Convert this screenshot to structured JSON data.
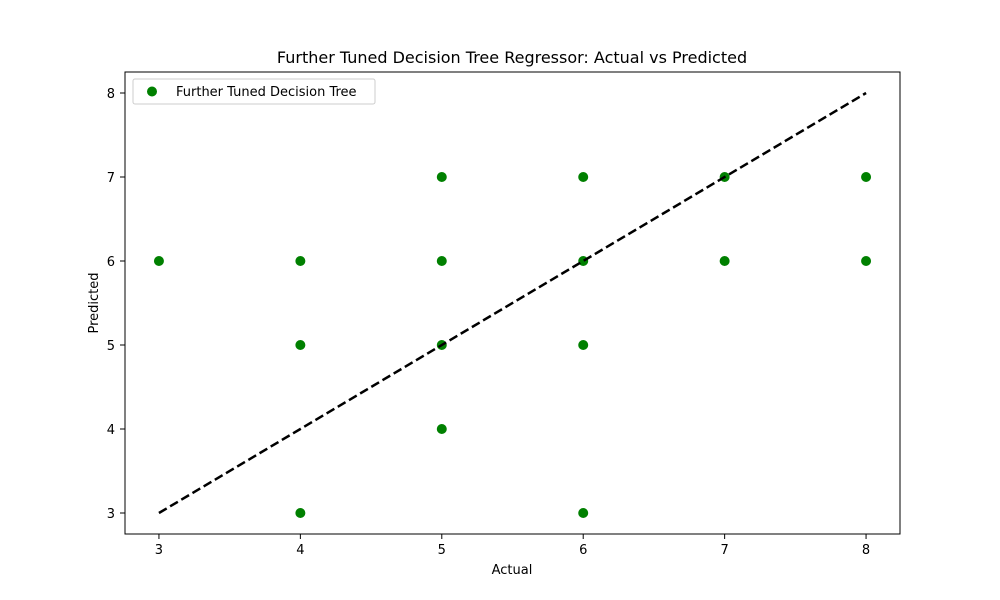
{
  "chart_data": {
    "type": "scatter",
    "title": "Further Tuned Decision Tree Regressor: Actual vs Predicted",
    "xlabel": "Actual",
    "ylabel": "Predicted",
    "xlim": [
      2.76,
      8.24
    ],
    "ylim": [
      2.75,
      8.25
    ],
    "xticks": [
      "3",
      "4",
      "5",
      "6",
      "7",
      "8"
    ],
    "yticks": [
      "3",
      "4",
      "5",
      "6",
      "7",
      "8"
    ],
    "grid": false,
    "legend_position": "upper-left",
    "series": [
      {
        "name": "Further Tuned Decision Tree",
        "color": "#008000",
        "marker": "circle",
        "points": [
          [
            3,
            6
          ],
          [
            4,
            6
          ],
          [
            4,
            5
          ],
          [
            4,
            3
          ],
          [
            5,
            7
          ],
          [
            5,
            6
          ],
          [
            5,
            5
          ],
          [
            5,
            4
          ],
          [
            6,
            7
          ],
          [
            6,
            6
          ],
          [
            6,
            5
          ],
          [
            6,
            3
          ],
          [
            7,
            7
          ],
          [
            7,
            6
          ],
          [
            8,
            7
          ],
          [
            8,
            6
          ]
        ]
      }
    ],
    "reference_line": {
      "style": "dashed",
      "color": "#000000",
      "from": [
        3,
        3
      ],
      "to": [
        8,
        8
      ]
    }
  }
}
